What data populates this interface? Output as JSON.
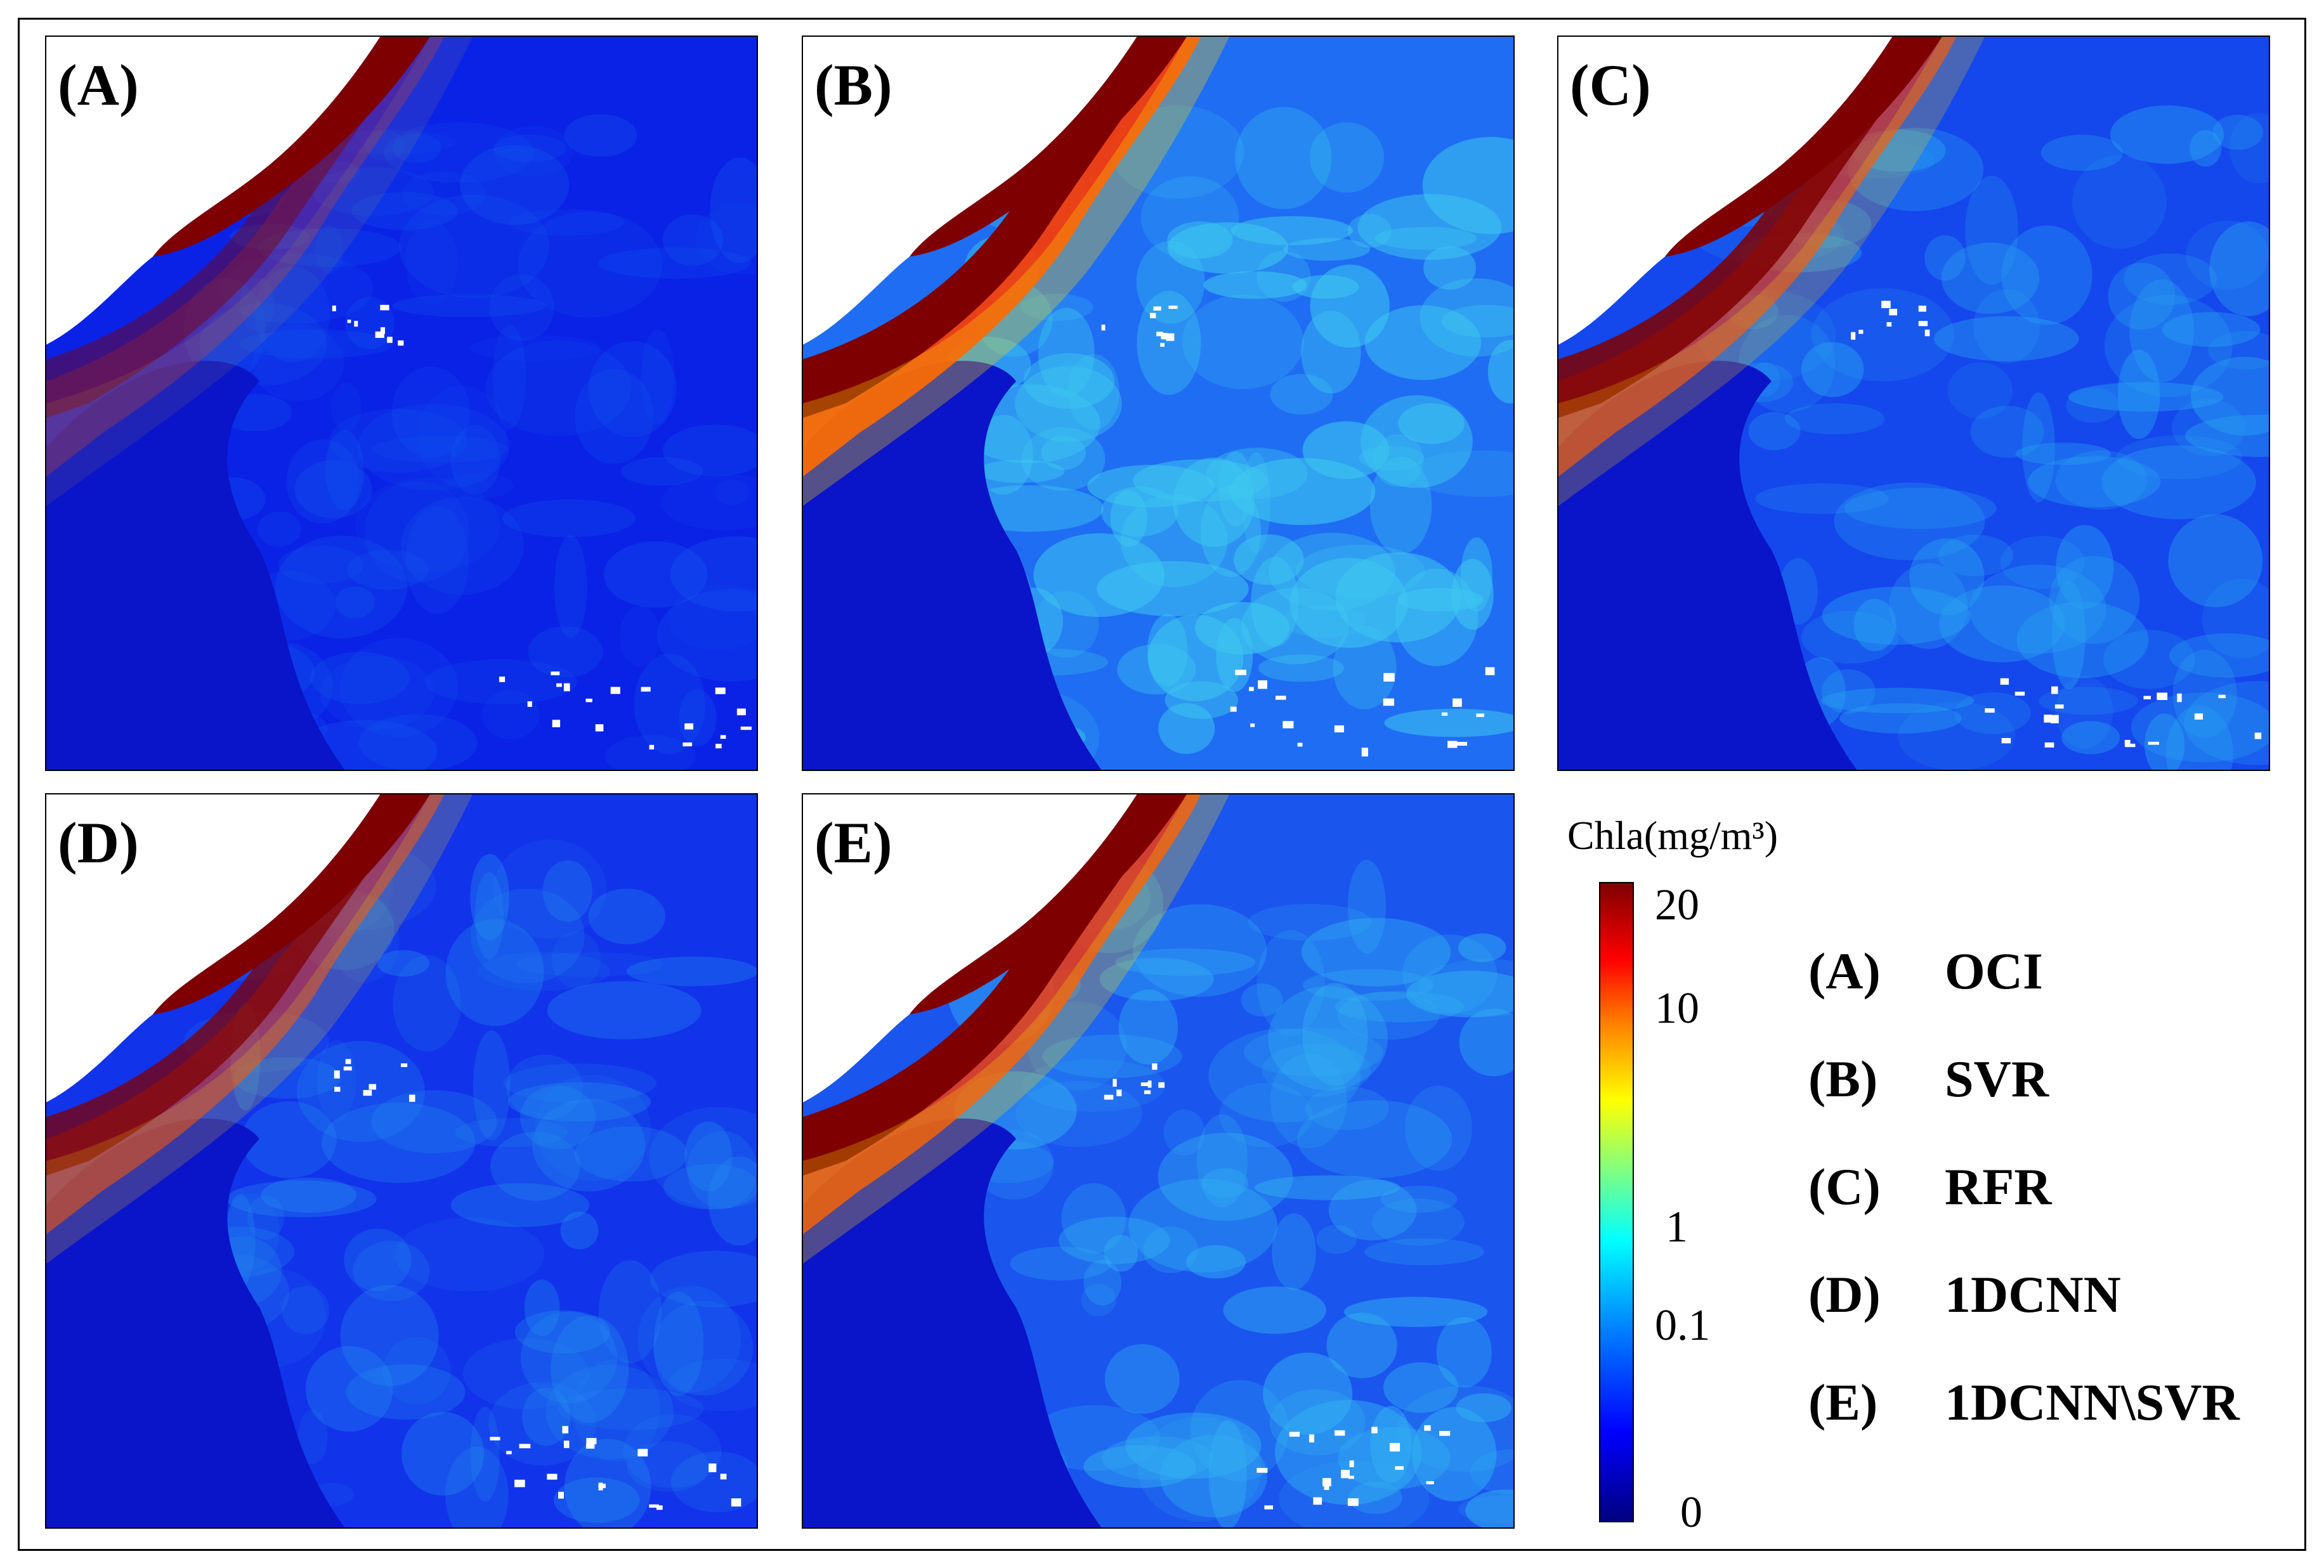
{
  "panels": [
    {
      "label": "(A)",
      "variant": "low"
    },
    {
      "label": "(B)",
      "variant": "high"
    },
    {
      "label": "(C)",
      "variant": "mid"
    },
    {
      "label": "(D)",
      "variant": "midlow"
    },
    {
      "label": "(E)",
      "variant": "midhigh"
    }
  ],
  "colorbar": {
    "title": "Chla(mg/m³)",
    "ticks": [
      "20",
      "10",
      "1",
      "0.1",
      "0"
    ],
    "colors": [
      "#00007f",
      "#0000ff",
      "#0080ff",
      "#00ffff",
      "#80ff80",
      "#ffff00",
      "#ff8000",
      "#ff0000",
      "#7f0000"
    ]
  },
  "legend": [
    {
      "key": "(A)",
      "name": "OCI"
    },
    {
      "key": "(B)",
      "name": "SVR"
    },
    {
      "key": "(C)",
      "name": "RFR"
    },
    {
      "key": "(D)",
      "name": "1DCNN"
    },
    {
      "key": "(E)",
      "name": "1DCNN\\SVR"
    }
  ]
}
